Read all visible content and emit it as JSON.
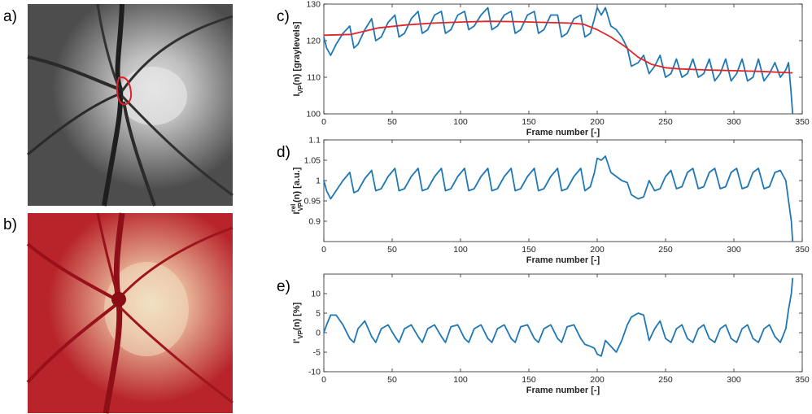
{
  "panels": {
    "a": "a)",
    "b": "b)",
    "c": "c)",
    "d": "d)",
    "e": "e)"
  },
  "image_a": {
    "type": "grayscale fundus / vessel image",
    "roi_color": "#e0202a"
  },
  "image_b": {
    "type": "color fundus photograph of optic disc"
  },
  "chart_data": [
    {
      "type": "line",
      "panel": "c",
      "xlabel": "Frame number [-]",
      "ylabel": {
        "pre": "I",
        "sub": "VP",
        "post": "(n) [graylevels]"
      },
      "xlim": [
        0,
        350
      ],
      "ylim": [
        100,
        130
      ],
      "xticks": [
        0,
        50,
        100,
        150,
        200,
        250,
        300,
        350
      ],
      "yticks": [
        100,
        110,
        120,
        130
      ],
      "series": [
        {
          "color": "#1f77b4",
          "x": [
            0,
            2,
            5,
            9,
            14,
            19,
            22,
            25,
            30,
            35,
            38,
            42,
            47,
            52,
            55,
            59,
            64,
            69,
            72,
            76,
            81,
            86,
            89,
            93,
            98,
            103,
            106,
            110,
            115,
            120,
            123,
            127,
            132,
            137,
            140,
            144,
            149,
            154,
            157,
            161,
            166,
            171,
            174,
            178,
            183,
            188,
            191,
            195,
            198,
            200,
            203,
            206,
            210,
            214,
            218,
            222,
            225,
            230,
            234,
            238,
            242,
            246,
            250,
            254,
            258,
            262,
            266,
            270,
            274,
            278,
            282,
            286,
            290,
            294,
            298,
            302,
            306,
            310,
            314,
            318,
            322,
            326,
            330,
            334,
            338,
            340,
            342,
            343
          ],
          "y": [
            121,
            118,
            116,
            119,
            122,
            124,
            118,
            119,
            123,
            126,
            120,
            121,
            125,
            127,
            121,
            122,
            126,
            128,
            122,
            123,
            127,
            128,
            122,
            123,
            127,
            128,
            123,
            124,
            127,
            129,
            123,
            124,
            127,
            128,
            122,
            123,
            127,
            128,
            122,
            123,
            127,
            127,
            121,
            122,
            126,
            127,
            121,
            122,
            126,
            129,
            127,
            129,
            124,
            123,
            121,
            118,
            113,
            114,
            116,
            111,
            113,
            116,
            110,
            111,
            115,
            110,
            111,
            115,
            110,
            111,
            115,
            109,
            111,
            115,
            109,
            111,
            115,
            109,
            110,
            115,
            109,
            111,
            114,
            110,
            112,
            114,
            105,
            100
          ]
        },
        {
          "color": "#e3242b",
          "x": [
            0,
            20,
            40,
            60,
            80,
            100,
            120,
            140,
            160,
            180,
            190,
            200,
            210,
            220,
            230,
            240,
            250,
            260,
            280,
            300,
            320,
            343
          ],
          "y": [
            121.5,
            121.7,
            123.5,
            124.3,
            124.8,
            125.1,
            125.3,
            125.2,
            125,
            124.8,
            124.5,
            123,
            121,
            118.5,
            115.5,
            113.5,
            112.6,
            112.3,
            112,
            111.8,
            111.6,
            111.2
          ]
        }
      ]
    },
    {
      "type": "line",
      "panel": "d",
      "xlabel": "Frame number [-]",
      "ylabel": {
        "pre": "I",
        "sup": "rel",
        "sub": "VP",
        "post": "(n) [a.u.]"
      },
      "xlim": [
        0,
        350
      ],
      "ylim": [
        0.85,
        1.1
      ],
      "xticks": [
        0,
        50,
        100,
        150,
        200,
        250,
        300,
        350
      ],
      "yticks": [
        0.9,
        0.95,
        1,
        1.05,
        1.1
      ],
      "ytick_labels": [
        "0.9",
        "0.95",
        "1",
        "1.05",
        "1.1"
      ],
      "series": [
        {
          "color": "#1f77b4",
          "x": [
            0,
            2,
            5,
            9,
            14,
            19,
            22,
            25,
            30,
            35,
            38,
            42,
            47,
            52,
            55,
            59,
            64,
            69,
            72,
            76,
            81,
            86,
            89,
            93,
            98,
            103,
            106,
            110,
            115,
            120,
            123,
            127,
            132,
            137,
            140,
            144,
            149,
            154,
            157,
            161,
            166,
            171,
            174,
            178,
            183,
            188,
            191,
            195,
            198,
            200,
            203,
            206,
            210,
            214,
            218,
            222,
            225,
            230,
            234,
            238,
            242,
            246,
            250,
            254,
            258,
            262,
            266,
            270,
            274,
            278,
            282,
            286,
            290,
            294,
            298,
            302,
            306,
            310,
            314,
            318,
            322,
            326,
            330,
            334,
            338,
            340,
            342,
            343
          ],
          "y": [
            1,
            0.975,
            0.955,
            0.975,
            1,
            1.02,
            0.97,
            0.975,
            1.005,
            1.025,
            0.975,
            0.98,
            1.01,
            1.03,
            0.975,
            0.98,
            1.01,
            1.03,
            0.975,
            0.98,
            1.01,
            1.03,
            0.975,
            0.98,
            1.01,
            1.03,
            0.975,
            0.98,
            1.01,
            1.03,
            0.975,
            0.98,
            1.01,
            1.03,
            0.975,
            0.98,
            1.01,
            1.03,
            0.975,
            0.98,
            1.01,
            1.03,
            0.975,
            0.98,
            1.01,
            1.03,
            0.975,
            0.985,
            1.02,
            1.055,
            1.05,
            1.06,
            1.02,
            1.01,
            1.0,
            0.995,
            0.965,
            0.955,
            0.96,
            1.0,
            0.975,
            0.98,
            1.01,
            1.025,
            0.98,
            0.985,
            1.02,
            1.03,
            0.98,
            0.985,
            1.02,
            1.03,
            0.98,
            0.985,
            1.02,
            1.03,
            0.98,
            0.985,
            1.02,
            1.03,
            0.98,
            0.985,
            1.02,
            1.025,
            1.0,
            0.95,
            0.9,
            0.85
          ]
        }
      ]
    },
    {
      "type": "line",
      "panel": "e",
      "xlabel": "Frame number [-]",
      "ylabel": {
        "pre": "I'",
        "sub": "VP",
        "post": "(n) [%]"
      },
      "xlim": [
        0,
        350
      ],
      "ylim": [
        -10,
        15
      ],
      "xticks": [
        0,
        50,
        100,
        150,
        200,
        250,
        300,
        350
      ],
      "yticks": [
        -10,
        -5,
        0,
        5,
        10
      ],
      "series": [
        {
          "color": "#1f77b4",
          "x": [
            0,
            2,
            5,
            9,
            14,
            19,
            22,
            25,
            30,
            35,
            38,
            42,
            47,
            52,
            55,
            59,
            64,
            69,
            72,
            76,
            81,
            86,
            89,
            93,
            98,
            103,
            106,
            110,
            115,
            120,
            123,
            127,
            132,
            137,
            140,
            144,
            149,
            154,
            157,
            161,
            166,
            171,
            174,
            178,
            183,
            188,
            191,
            195,
            198,
            200,
            203,
            206,
            210,
            214,
            218,
            222,
            225,
            230,
            234,
            238,
            242,
            246,
            250,
            254,
            258,
            262,
            266,
            270,
            274,
            278,
            282,
            286,
            290,
            294,
            298,
            302,
            306,
            310,
            314,
            318,
            322,
            326,
            330,
            334,
            338,
            340,
            342,
            343
          ],
          "y": [
            0,
            2,
            4.5,
            4.5,
            2,
            -1.5,
            -2.5,
            1,
            3,
            -1,
            -2.5,
            1,
            2,
            -1,
            -2.5,
            1,
            2,
            -1,
            -2.5,
            1,
            2,
            -1,
            -2.5,
            1.5,
            2,
            -1.5,
            -2.5,
            1,
            2,
            -1.5,
            -2.5,
            1,
            2,
            -1.5,
            -2.5,
            1.5,
            2,
            -1.5,
            -2.5,
            1,
            2,
            -1.5,
            -2.5,
            1.5,
            2,
            -1.5,
            -3,
            -3.5,
            -4,
            -5.5,
            -6,
            -2,
            -3.5,
            -5,
            -2,
            2,
            4,
            5,
            4.5,
            -2,
            1,
            3,
            -1.5,
            -2.5,
            1,
            2,
            -1.5,
            -2.5,
            1,
            2,
            -1.5,
            -2.5,
            1,
            2,
            -1.5,
            -2.5,
            1,
            2,
            -1.5,
            -2.5,
            1,
            2,
            -1,
            -2.5,
            1,
            6,
            10,
            14
          ]
        }
      ]
    }
  ]
}
